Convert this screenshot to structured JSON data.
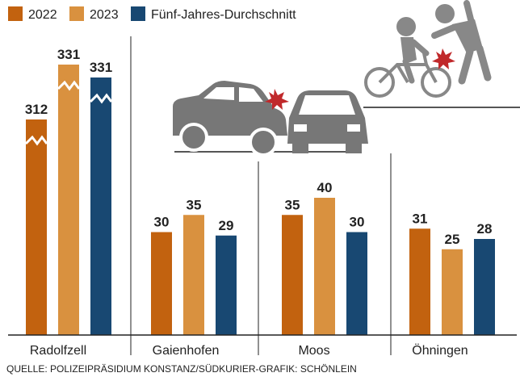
{
  "chart_data": {
    "type": "bar",
    "categories": [
      "Radolfzell",
      "Gaienhofen",
      "Moos",
      "Öhningen"
    ],
    "series": [
      {
        "name": "2022",
        "color": "#c2620f",
        "values": [
          312,
          30,
          35,
          31
        ]
      },
      {
        "name": "2023",
        "color": "#d9913f",
        "values": [
          331,
          35,
          40,
          25
        ]
      },
      {
        "name": "Fünf-Jahres-Durchschnitt",
        "color": "#184872",
        "values": [
          331,
          29,
          30,
          28
        ]
      }
    ],
    "axis_break": {
      "category": "Radolfzell",
      "note": "bars truncated with zigzag break"
    },
    "title": "",
    "xlabel": "",
    "ylabel": "",
    "ylim": [
      0,
      45
    ],
    "grid": false,
    "legend": "top-left"
  },
  "source": "QUELLE: POLIZEIPRÄSIDIUM KONSTANZ/SÜDKURIER-GRAFIK: SCHÖNLEIN",
  "illustrations": [
    "car-collision-icon",
    "cyclist-pedestrian-collision-icon"
  ]
}
